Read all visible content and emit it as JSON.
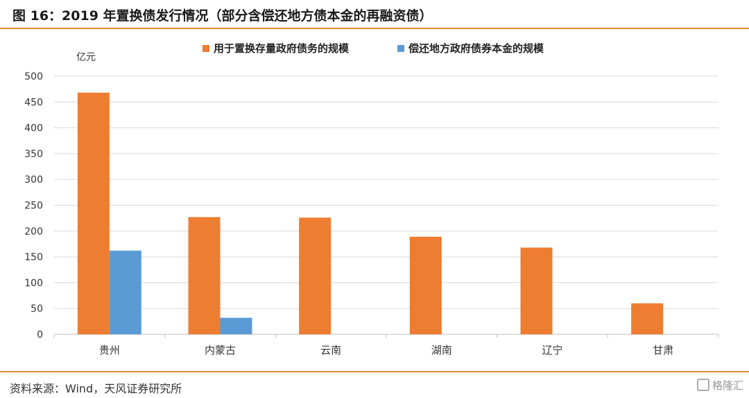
{
  "figure": {
    "title": "图 16：2019 年置换债发行情况（部分含偿还地方债本金的再融资债）",
    "source": "资料来源：Wind，天风证券研究所",
    "watermark": "格隆汇"
  },
  "colors": {
    "accent": "#e08a2e",
    "series1": "#ed7d31",
    "series2": "#5b9bd5",
    "grid": "#d9d9d9"
  },
  "chart_data": {
    "type": "bar",
    "title": "",
    "xlabel": "",
    "ylabel": "亿元",
    "ylim": [
      0,
      500
    ],
    "yticks": [
      0,
      50,
      100,
      150,
      200,
      250,
      300,
      350,
      400,
      450,
      500
    ],
    "grid": true,
    "legend_position": "top-center",
    "categories": [
      "贵州",
      "内蒙古",
      "云南",
      "湖南",
      "辽宁",
      "甘肃"
    ],
    "series": [
      {
        "name": "用于置换存量政府债务的规模",
        "color": "#ed7d31",
        "values": [
          468,
          227,
          226,
          189,
          168,
          60
        ]
      },
      {
        "name": "偿还地方政府债券本金的规模",
        "color": "#5b9bd5",
        "values": [
          162,
          32,
          0,
          0,
          0,
          0
        ]
      }
    ]
  }
}
